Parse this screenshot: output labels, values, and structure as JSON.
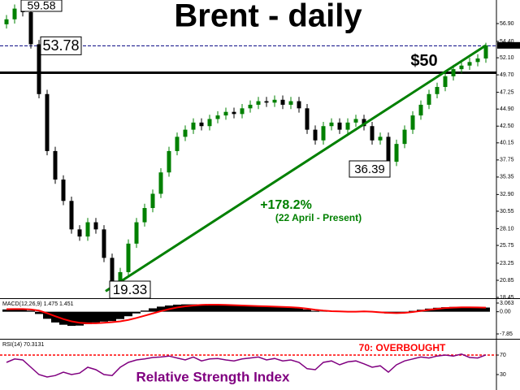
{
  "chart_data": {
    "type": "candlestick",
    "title": "Brent - daily",
    "series": {
      "up_color": "#008000",
      "down_color": "#000000",
      "open": [
        56.8,
        57.5,
        59.0,
        58.5,
        54,
        47,
        39,
        35,
        32,
        28,
        27,
        29,
        28,
        24,
        20.5,
        22,
        26,
        29,
        31,
        33,
        36,
        39,
        41,
        42,
        43,
        42.5,
        43.5,
        44,
        44.5,
        44.2,
        45,
        45.5,
        46,
        45.8,
        46.2,
        45.5,
        46,
        45,
        42,
        40.5,
        42.5,
        43,
        42,
        43,
        43.5,
        42.5,
        40.5,
        41,
        37.5,
        40,
        42,
        44,
        45.5,
        47,
        48,
        49.5,
        50.5,
        51,
        51.5,
        52
      ],
      "high": [
        58.1,
        59.58,
        59.5,
        59.1,
        54.6,
        47.6,
        39.6,
        35.6,
        32.6,
        28.6,
        29.6,
        29.6,
        28.6,
        24.6,
        22.6,
        26.6,
        29.6,
        31.6,
        33.6,
        36.6,
        39.6,
        41.6,
        42.6,
        43.6,
        43.6,
        44.1,
        44.6,
        45.1,
        45.1,
        45.6,
        46.1,
        46.6,
        46.6,
        46.8,
        46.8,
        46.6,
        46.6,
        45.6,
        42.6,
        43.1,
        43.6,
        43.6,
        43.6,
        44.1,
        44.1,
        43.1,
        41.6,
        41.6,
        40.6,
        42.6,
        44.6,
        46.1,
        47.6,
        48.6,
        50.1,
        51.1,
        51.6,
        52.1,
        52.6,
        54.2
      ],
      "low": [
        56.2,
        56.9,
        57.9,
        53.4,
        46.4,
        38.4,
        34.4,
        31.4,
        27.4,
        26.4,
        26.4,
        27.4,
        23.4,
        19.33,
        19.9,
        21.4,
        25.4,
        28.4,
        30.4,
        32.4,
        35.4,
        38.4,
        40.4,
        41.4,
        41.9,
        41.9,
        42.9,
        43.4,
        43.6,
        43.6,
        44.4,
        44.9,
        45.2,
        45.2,
        44.9,
        44.9,
        44.4,
        41.4,
        39.9,
        39.9,
        41.9,
        41.4,
        41.4,
        42.4,
        41.9,
        39.9,
        39.9,
        36.39,
        36.9,
        39.4,
        41.4,
        43.4,
        44.9,
        46.4,
        47.4,
        48.9,
        49.9,
        50.4,
        50.9,
        51.4
      ],
      "close": [
        57.5,
        59.0,
        58.5,
        54,
        47,
        39,
        35,
        32,
        28,
        27,
        29,
        28,
        24,
        20.5,
        22,
        26,
        29,
        31,
        33,
        36,
        39,
        41,
        42,
        43,
        42.5,
        43.5,
        44,
        44.5,
        44.2,
        45,
        45.5,
        46,
        45.8,
        46.2,
        45.5,
        46,
        45,
        42,
        40.5,
        42.5,
        43,
        42,
        43,
        43.5,
        42.5,
        40.5,
        41,
        37.5,
        40,
        42,
        44,
        45.5,
        47,
        48,
        49.5,
        50.5,
        51,
        51.5,
        52,
        53.84
      ]
    },
    "ylim": [
      18.34,
      60.21
    ],
    "yticks": [
      {
        "value": 56.9,
        "label": "56.90"
      },
      {
        "value": 54.4,
        "label": "54.40"
      },
      {
        "value": 52.1,
        "label": "52.10"
      },
      {
        "value": 49.7,
        "label": "49.70"
      },
      47.25,
      {
        "value": 44.9,
        "label": "44.90"
      },
      {
        "value": 42.5,
        "label": "42.50"
      },
      40.15,
      37.75,
      35.35,
      {
        "value": 32.9,
        "label": "32.90"
      },
      30.55,
      {
        "value": 28.1,
        "label": "28.10"
      },
      25.75,
      23.25,
      20.85,
      18.45
    ],
    "last_price": 53.84,
    "levels": [
      {
        "value": 53.78,
        "color": "#000080"
      },
      {
        "value": 50,
        "label": "$50",
        "color": "#000000"
      }
    ],
    "callouts": [
      59.58,
      19.33,
      36.39
    ],
    "trend_line": {
      "color": "#008000",
      "label": "+178.2%",
      "sublabel": "(22 April - Present)"
    },
    "macd": {
      "label": "MACD(12,26,9) 1.475 1.451",
      "histogram": [
        0.8,
        1.0,
        0.9,
        0.4,
        -0.8,
        -2.5,
        -3.8,
        -4.6,
        -5.0,
        -4.9,
        -4.4,
        -3.8,
        -3.5,
        -3.3,
        -2.6,
        -1.6,
        -0.6,
        0.4,
        1.2,
        1.8,
        2.2,
        2.5,
        2.6,
        2.6,
        2.5,
        2.5,
        2.4,
        2.3,
        2.2,
        2.1,
        2.0,
        1.9,
        1.8,
        1.7,
        1.6,
        1.4,
        1.2,
        0.8,
        0.3,
        0.1,
        0.0,
        -0.1,
        0.0,
        0.1,
        0.1,
        -0.1,
        -0.4,
        -0.6,
        -0.5,
        -0.2,
        0.3,
        0.7,
        1.1,
        1.4,
        1.6,
        1.7,
        1.7,
        1.6,
        1.5,
        1.475
      ],
      "signal": [
        0.9,
        0.95,
        0.95,
        0.8,
        0.4,
        -0.5,
        -1.6,
        -2.6,
        -3.4,
        -3.9,
        -4.1,
        -4.1,
        -3.9,
        -3.7,
        -3.4,
        -2.9,
        -2.2,
        -1.4,
        -0.6,
        0.2,
        0.9,
        1.5,
        1.9,
        2.2,
        2.4,
        2.5,
        2.5,
        2.4,
        2.3,
        2.2,
        2.1,
        2.0,
        1.9,
        1.8,
        1.7,
        1.6,
        1.4,
        1.1,
        0.7,
        0.4,
        0.2,
        0.1,
        0.0,
        0.0,
        0.1,
        0.0,
        -0.2,
        -0.4,
        -0.5,
        -0.4,
        -0.1,
        0.3,
        0.7,
        1.0,
        1.3,
        1.45,
        1.55,
        1.55,
        1.5,
        1.451
      ],
      "histogram_color": "#000000",
      "signal_color": "#ff0000",
      "ylim": [
        -9.29,
        4.21
      ],
      "yticks": [
        3.063,
        {
          "value": 0,
          "label": "0.00"
        },
        -7.85
      ]
    },
    "rsi": {
      "label": "RSI(14) 70.3131",
      "name": "Relative Strength Index",
      "values": [
        55,
        62,
        60,
        45,
        30,
        25,
        28,
        35,
        30,
        33,
        45,
        40,
        30,
        28,
        45,
        55,
        60,
        62,
        65,
        66,
        68,
        64,
        60,
        66,
        58,
        62,
        63,
        60,
        58,
        62,
        64,
        66,
        60,
        63,
        58,
        60,
        55,
        42,
        40,
        55,
        58,
        50,
        56,
        58,
        52,
        45,
        48,
        35,
        50,
        58,
        62,
        66,
        64,
        68,
        70,
        68,
        72,
        65,
        64,
        70.3131
      ],
      "color": "#800080",
      "ylim": [
        0,
        100
      ],
      "yticks": [
        70,
        30
      ],
      "overbought": 70,
      "overbought_label": "70: OVERBOUGHT",
      "overbought_color": "#ff0000"
    }
  }
}
